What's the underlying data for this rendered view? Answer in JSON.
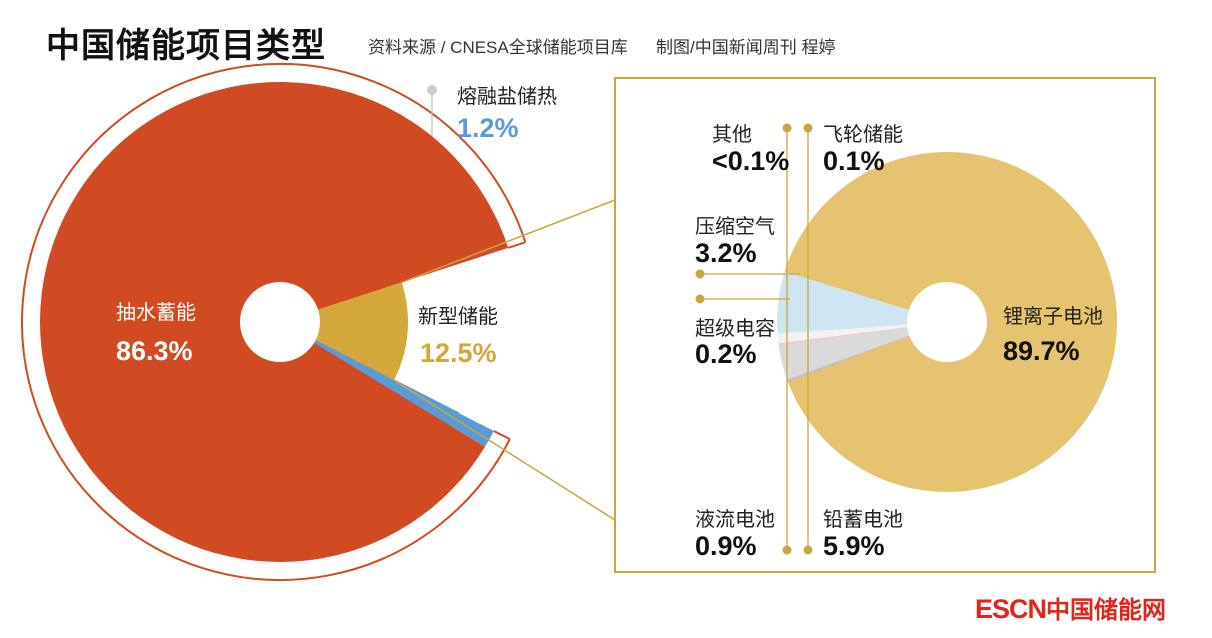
{
  "title": "中国储能项目类型",
  "source": "资料来源 / CNESA全球储能项目库",
  "credit": "制图/中国新闻周刊 程婷",
  "logo": {
    "en": "ESCN",
    "cn": "中国储能网"
  },
  "colors": {
    "pumped": "#d04a22",
    "molten": "#5b9bd5",
    "new": "#d4a73a",
    "li": "#e6c36f",
    "lead": "#cfe6f2",
    "flow": "#f2f2f2",
    "super": "#f0c9c9",
    "air": "#dadada",
    "accent_line": "#c9a640"
  },
  "chart_data": [
    {
      "type": "pie",
      "title": "中国储能项目类型",
      "slices": [
        {
          "name": "抽水蓄能",
          "value": 86.3,
          "label": "86.3%"
        },
        {
          "name": "熔融盐储热",
          "value": 1.2,
          "label": "1.2%"
        },
        {
          "name": "新型储能",
          "value": 12.5,
          "label": "12.5%"
        }
      ]
    },
    {
      "type": "pie",
      "title": "新型储能",
      "slices": [
        {
          "name": "锂离子电池",
          "value": 89.7,
          "label": "89.7%"
        },
        {
          "name": "铅蓄电池",
          "value": 5.9,
          "label": "5.9%"
        },
        {
          "name": "液流电池",
          "value": 0.9,
          "label": "0.9%"
        },
        {
          "name": "超级电容",
          "value": 0.2,
          "label": "0.2%"
        },
        {
          "name": "压缩空气",
          "value": 3.2,
          "label": "3.2%"
        },
        {
          "name": "飞轮储能",
          "value": 0.1,
          "label": "0.1%"
        },
        {
          "name": "其他",
          "value": 0.05,
          "label": "<0.1%"
        }
      ]
    }
  ]
}
